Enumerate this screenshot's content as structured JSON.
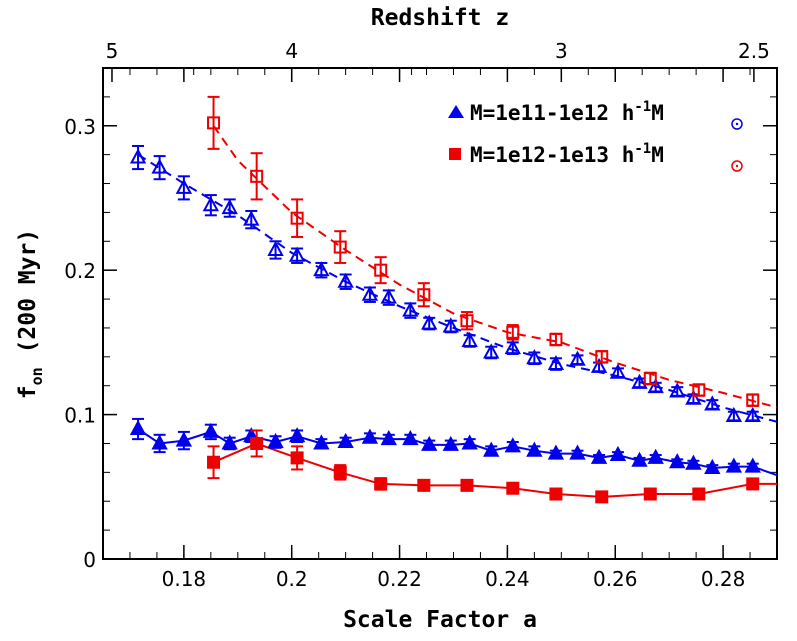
{
  "chart_data": {
    "type": "line",
    "xlabel": "Scale Factor a",
    "x2label": "Redshift z",
    "ylabel_main": "f",
    "ylabel_sub": "on",
    "ylabel_rest": " (200 Myr)",
    "xlim": [
      0.165,
      0.29
    ],
    "ylim": [
      0,
      0.34
    ],
    "x_ticks": [
      0.18,
      0.2,
      0.22,
      0.24,
      0.26,
      0.28
    ],
    "x_tick_labels": [
      "0.18",
      "0.2",
      "0.22",
      "0.24",
      "0.26",
      "0.28"
    ],
    "y_ticks": [
      0,
      0.1,
      0.2,
      0.3
    ],
    "y_tick_labels": [
      "0",
      "0.1",
      "0.2",
      "0.3"
    ],
    "z_ticks": [
      5,
      4,
      3,
      2.5
    ],
    "z_tick_labels": [
      "5",
      "4",
      "3",
      "2.5"
    ],
    "legend": [
      {
        "text": "M=1e11-1e12 h",
        "sup": "-1",
        "tail": "M",
        "color": "#0000ee",
        "marker": "triangle"
      },
      {
        "text": "M=1e12-1e13 h",
        "sup": "-1",
        "tail": "M",
        "color": "#ee0000",
        "marker": "square"
      }
    ],
    "series": [
      {
        "color": "#0000ee",
        "marker": "triangle-open",
        "line": "dashed",
        "x": [
          0.1715,
          0.1755,
          0.18,
          0.185,
          0.1885,
          0.1925,
          0.197,
          0.201,
          0.2055,
          0.21,
          0.2145,
          0.218,
          0.222,
          0.2255,
          0.2295,
          0.233,
          0.237,
          0.241,
          0.245,
          0.249,
          0.253,
          0.257,
          0.2605,
          0.2645,
          0.2675,
          0.2715,
          0.2745,
          0.278,
          0.282,
          0.2855
        ],
        "y": [
          0.278,
          0.271,
          0.257,
          0.245,
          0.243,
          0.235,
          0.214,
          0.21,
          0.2,
          0.192,
          0.183,
          0.181,
          0.172,
          0.163,
          0.161,
          0.151,
          0.143,
          0.146,
          0.139,
          0.135,
          0.138,
          0.133,
          0.129,
          0.122,
          0.119,
          0.116,
          0.111,
          0.107,
          0.099,
          0.099
        ],
        "err": [
          0.008,
          0.008,
          0.008,
          0.007,
          0.006,
          0.006,
          0.006,
          0.005,
          0.005,
          0.005,
          0.005,
          0.005,
          0.005,
          0.004,
          0.004,
          0.004,
          0.004,
          0.004,
          0.004,
          0.004,
          0.003,
          0.003,
          0.003,
          0.003,
          0.003,
          0.003,
          0.003,
          0.003,
          0.003,
          0.003
        ],
        "fit_x": [
          0.1715,
          0.18,
          0.19,
          0.2,
          0.21,
          0.22,
          0.23,
          0.24,
          0.25,
          0.26,
          0.27,
          0.28,
          0.29
        ],
        "fit_y": [
          0.28,
          0.26,
          0.238,
          0.212,
          0.192,
          0.175,
          0.16,
          0.146,
          0.135,
          0.127,
          0.117,
          0.105,
          0.095
        ]
      },
      {
        "color": "#ee0000",
        "marker": "square-open",
        "line": "dashed",
        "x": [
          0.1855,
          0.1935,
          0.201,
          0.209,
          0.2165,
          0.2245,
          0.2325,
          0.241,
          0.249,
          0.2575,
          0.2665,
          0.2755,
          0.2855
        ],
        "y": [
          0.302,
          0.265,
          0.236,
          0.216,
          0.2,
          0.183,
          0.165,
          0.157,
          0.152,
          0.14,
          0.125,
          0.117,
          0.11
        ],
        "err": [
          0.018,
          0.016,
          0.013,
          0.011,
          0.009,
          0.008,
          0.006,
          0.005,
          0.004,
          0.004,
          0.004,
          0.004,
          0.004
        ],
        "fit_x": [
          0.1855,
          0.19,
          0.2,
          0.21,
          0.22,
          0.23,
          0.24,
          0.25,
          0.26,
          0.27,
          0.28,
          0.29
        ],
        "fit_y": [
          0.3,
          0.276,
          0.24,
          0.214,
          0.19,
          0.17,
          0.157,
          0.15,
          0.136,
          0.124,
          0.115,
          0.105
        ]
      },
      {
        "color": "#0000ee",
        "marker": "triangle-filled",
        "line": "solid",
        "x": [
          0.1715,
          0.1755,
          0.18,
          0.185,
          0.1885,
          0.1925,
          0.197,
          0.201,
          0.2055,
          0.21,
          0.2145,
          0.218,
          0.222,
          0.2255,
          0.2295,
          0.233,
          0.237,
          0.241,
          0.245,
          0.249,
          0.253,
          0.257,
          0.2605,
          0.2645,
          0.2675,
          0.2715,
          0.2745,
          0.278,
          0.282,
          0.2855
        ],
        "y": [
          0.09,
          0.08,
          0.082,
          0.088,
          0.08,
          0.085,
          0.081,
          0.085,
          0.08,
          0.081,
          0.084,
          0.083,
          0.083,
          0.079,
          0.079,
          0.08,
          0.075,
          0.078,
          0.075,
          0.073,
          0.073,
          0.07,
          0.072,
          0.068,
          0.07,
          0.067,
          0.066,
          0.063,
          0.064,
          0.064
        ],
        "err": [
          0.007,
          0.006,
          0.006,
          0.005,
          0.004,
          0.004,
          0.004,
          0.004,
          0.003,
          0.003,
          0.003,
          0.003,
          0.003,
          0.003,
          0.003,
          0.003,
          0.003,
          0.003,
          0.003,
          0.002,
          0.002,
          0.002,
          0.002,
          0.002,
          0.002,
          0.002,
          0.002,
          0.002,
          0.002,
          0.002
        ],
        "fit_x": [
          0.1715,
          0.1755,
          0.18,
          0.185,
          0.1885,
          0.1925,
          0.197,
          0.201,
          0.2055,
          0.21,
          0.2145,
          0.218,
          0.222,
          0.2255,
          0.2295,
          0.233,
          0.237,
          0.241,
          0.245,
          0.249,
          0.253,
          0.257,
          0.2605,
          0.2645,
          0.2675,
          0.2715,
          0.2745,
          0.278,
          0.282,
          0.2855,
          0.29
        ],
        "fit_y": [
          0.09,
          0.08,
          0.082,
          0.088,
          0.08,
          0.085,
          0.081,
          0.085,
          0.08,
          0.081,
          0.084,
          0.083,
          0.083,
          0.079,
          0.079,
          0.08,
          0.075,
          0.078,
          0.075,
          0.073,
          0.073,
          0.07,
          0.072,
          0.068,
          0.07,
          0.067,
          0.066,
          0.063,
          0.064,
          0.064,
          0.058
        ]
      },
      {
        "color": "#ee0000",
        "marker": "square-filled",
        "line": "solid",
        "x": [
          0.1855,
          0.1935,
          0.201,
          0.209,
          0.2165,
          0.2245,
          0.2325,
          0.241,
          0.249,
          0.2575,
          0.2665,
          0.2755,
          0.2855
        ],
        "y": [
          0.067,
          0.08,
          0.07,
          0.06,
          0.052,
          0.051,
          0.051,
          0.049,
          0.045,
          0.043,
          0.045,
          0.045,
          0.052
        ],
        "err": [
          0.011,
          0.009,
          0.008,
          0.005,
          0.004,
          0.003,
          0.003,
          0.003,
          0.002,
          0.002,
          0.002,
          0.002,
          0.002
        ],
        "fit_x": [
          0.1855,
          0.1935,
          0.201,
          0.209,
          0.2165,
          0.2245,
          0.2325,
          0.241,
          0.249,
          0.2575,
          0.2665,
          0.2755,
          0.2855,
          0.29
        ],
        "fit_y": [
          0.067,
          0.08,
          0.07,
          0.06,
          0.052,
          0.051,
          0.051,
          0.049,
          0.045,
          0.043,
          0.045,
          0.045,
          0.052,
          0.052
        ]
      }
    ]
  }
}
